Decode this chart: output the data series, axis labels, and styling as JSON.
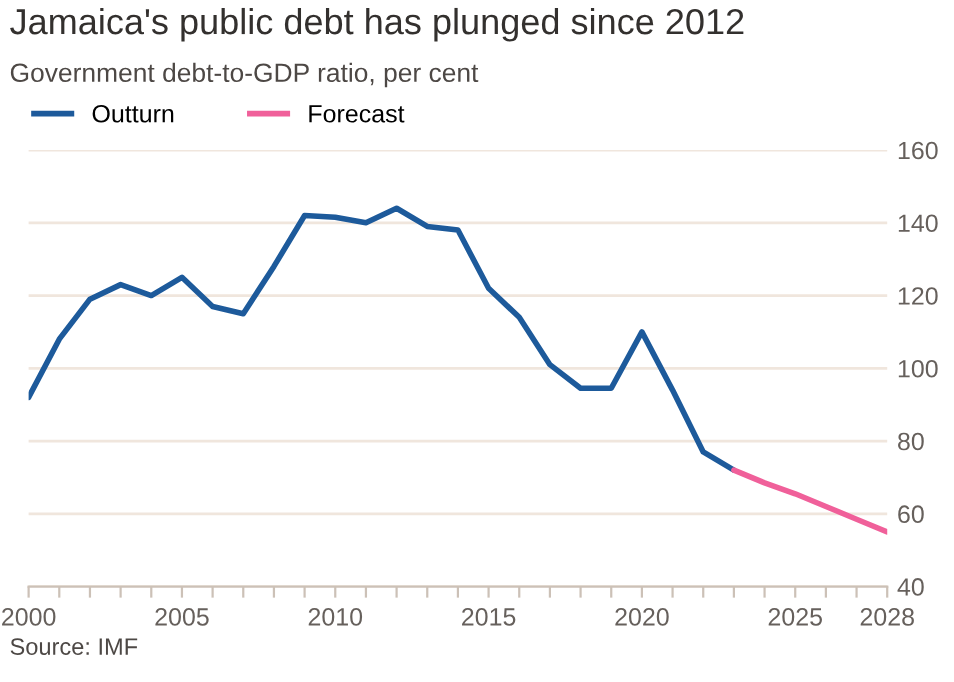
{
  "chart_data": {
    "type": "line",
    "title": "Jamaica's public debt has plunged since 2012",
    "subtitle": "Government debt-to-GDP ratio, per cent",
    "annotations": [
      "Source: IMF"
    ],
    "series": [
      {
        "name": "Outturn",
        "color": "#1d5a9b",
        "x": [
          2000,
          2001,
          2002,
          2003,
          2004,
          2005,
          2006,
          2007,
          2008,
          2009,
          2010,
          2011,
          2012,
          2013,
          2014,
          2015,
          2016,
          2017,
          2018,
          2019,
          2020,
          2021,
          2022,
          2023
        ],
        "values": [
          92,
          108,
          119,
          123,
          120,
          125,
          117,
          115,
          128,
          142,
          141.5,
          140,
          144,
          139,
          138,
          122,
          114,
          101,
          94.5,
          94.5,
          110,
          94,
          77,
          72
        ]
      },
      {
        "name": "Forecast",
        "color": "#f0609a",
        "x": [
          2023,
          2024,
          2025,
          2026,
          2027,
          2028
        ],
        "values": [
          72,
          68.5,
          65.5,
          62,
          58.5,
          55
        ]
      }
    ],
    "xlim": [
      2000,
      2028
    ],
    "xticks": [
      2000,
      {
        "value": 2001,
        "label": null
      },
      {
        "value": 2002,
        "label": null
      },
      {
        "value": 2003,
        "label": null
      },
      {
        "value": 2004,
        "label": null
      },
      2005,
      {
        "value": 2006,
        "label": null
      },
      {
        "value": 2007,
        "label": null
      },
      {
        "value": 2008,
        "label": null
      },
      {
        "value": 2009,
        "label": null
      },
      2010,
      {
        "value": 2011,
        "label": null
      },
      {
        "value": 2012,
        "label": null
      },
      {
        "value": 2013,
        "label": null
      },
      {
        "value": 2014,
        "label": null
      },
      2015,
      {
        "value": 2016,
        "label": null
      },
      {
        "value": 2017,
        "label": null
      },
      {
        "value": 2018,
        "label": null
      },
      {
        "value": 2019,
        "label": null
      },
      2020,
      {
        "value": 2021,
        "label": null
      },
      {
        "value": 2022,
        "label": null
      },
      {
        "value": 2023,
        "label": null
      },
      {
        "value": 2024,
        "label": null
      },
      2025,
      {
        "value": 2026,
        "label": null
      },
      {
        "value": 2027,
        "label": null
      },
      2028
    ],
    "ylim": [
      40,
      160
    ],
    "yticks": [
      40,
      60,
      80,
      100,
      120,
      140,
      160
    ],
    "grid": "y",
    "legend": "top left",
    "marker": "none",
    "line_style": "solid"
  }
}
